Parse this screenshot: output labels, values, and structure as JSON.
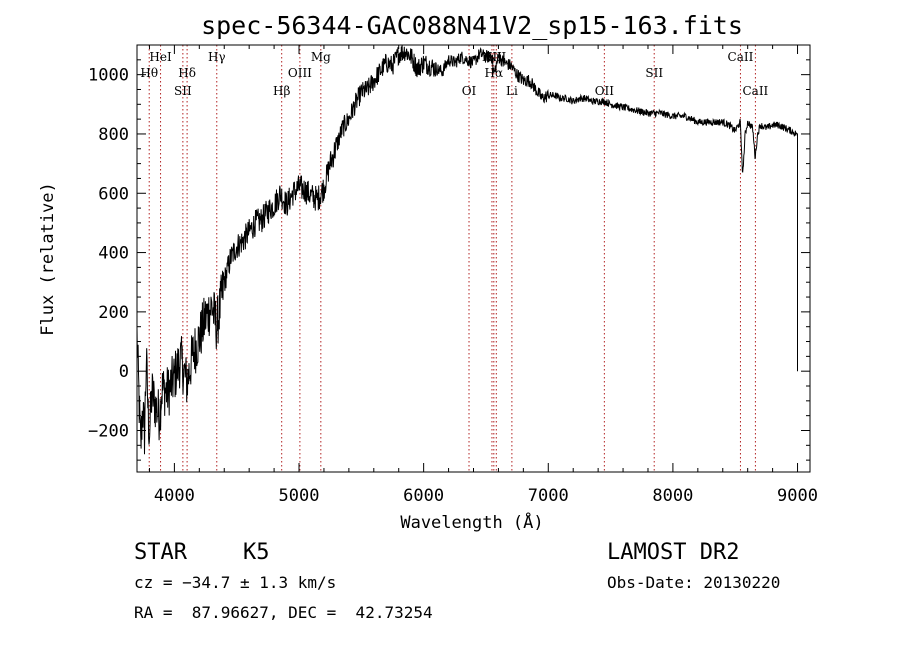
{
  "chart_data": {
    "type": "line",
    "title": "spec-56344-GAC088N41V2_sp15-163.fits",
    "xlabel": "Wavelength (Å)",
    "ylabel": "Flux (relative)",
    "xlim": [
      3700,
      9100
    ],
    "ylim": [
      -340,
      1100
    ],
    "xticks": [
      "4000",
      "5000",
      "6000",
      "7000",
      "8000",
      "9000"
    ],
    "yticks": [
      "−200",
      "0",
      "200",
      "400",
      "600",
      "800",
      "1000"
    ],
    "grid": false,
    "series": [
      {
        "x": [
          3700,
          3715,
          3730,
          3745,
          3760,
          3775,
          3790,
          3800,
          3820,
          3850,
          3880,
          3900,
          3950,
          4000,
          4050,
          4100,
          4150,
          4200,
          4250,
          4300,
          4340,
          4400,
          4450,
          4500,
          4550,
          4600,
          4650,
          4700,
          4750,
          4800,
          4850,
          4900,
          4950,
          5000,
          5050,
          5100,
          5150,
          5200,
          5250,
          5300,
          5350,
          5400,
          5450,
          5500,
          5550,
          5600,
          5650,
          5700,
          5750,
          5800,
          5850,
          5900,
          5950,
          6000,
          6050,
          6100,
          6150,
          6200,
          6250,
          6300,
          6350,
          6400,
          6450,
          6500,
          6550,
          6563,
          6600,
          6650,
          6700,
          6750,
          6800,
          6850,
          6900,
          6950,
          7000,
          7050,
          7100,
          7150,
          7200,
          7250,
          7300,
          7350,
          7400,
          7450,
          7500,
          7600,
          7700,
          7800,
          7900,
          8000,
          8100,
          8200,
          8300,
          8400,
          8450,
          8500,
          8540,
          8560,
          8580,
          8600,
          8640,
          8660,
          8680,
          8700,
          8750,
          8800,
          8850,
          8900,
          8950,
          8990,
          9000
        ],
        "y": [
          120,
          -80,
          -260,
          -120,
          -210,
          40,
          -150,
          -210,
          -70,
          -120,
          -150,
          -60,
          -70,
          -20,
          40,
          -40,
          60,
          110,
          180,
          220,
          150,
          300,
          380,
          420,
          440,
          470,
          500,
          510,
          540,
          560,
          600,
          560,
          600,
          620,
          610,
          590,
          580,
          620,
          700,
          760,
          820,
          850,
          900,
          940,
          950,
          980,
          1010,
          1040,
          1030,
          1070,
          1080,
          1060,
          1020,
          1040,
          1030,
          1020,
          1010,
          1050,
          1040,
          1060,
          1050,
          1040,
          1070,
          1060,
          1060,
          1000,
          1060,
          1040,
          1030,
          1000,
          980,
          980,
          950,
          920,
          930,
          930,
          920,
          920,
          910,
          920,
          920,
          910,
          910,
          910,
          900,
          890,
          880,
          870,
          870,
          860,
          860,
          840,
          840,
          840,
          830,
          810,
          840,
          660,
          800,
          840,
          820,
          720,
          800,
          830,
          820,
          830,
          830,
          820,
          810,
          800,
          0
        ]
      }
    ],
    "spectral_lines": [
      {
        "label": "Hθ",
        "x": 3798,
        "row": 2
      },
      {
        "label": "HeI",
        "x": 3889,
        "row": 1
      },
      {
        "label": "SII",
        "x": 4068,
        "row": 3
      },
      {
        "label": "Hδ",
        "x": 4102,
        "row": 2
      },
      {
        "label": "Hγ",
        "x": 4340,
        "row": 1
      },
      {
        "label": "Hβ",
        "x": 4861,
        "row": 3
      },
      {
        "label": "OIII",
        "x": 5007,
        "row": 2
      },
      {
        "label": "Mg",
        "x": 5175,
        "row": 1
      },
      {
        "label": "OI",
        "x": 6364,
        "row": 3
      },
      {
        "label": "NII",
        "x": 6548,
        "row": 1
      },
      {
        "label": "Hα",
        "x": 6563,
        "row": 2
      },
      {
        "label": "NII",
        "x": 6583,
        "row": 1
      },
      {
        "label": "Li",
        "x": 6708,
        "row": 3
      },
      {
        "label": "OII",
        "x": 7450,
        "row": 3
      },
      {
        "label": "SII",
        "x": 7850,
        "row": 2
      },
      {
        "label": "CaII",
        "x": 8542,
        "row": 1
      },
      {
        "label": "CaII",
        "x": 8662,
        "row": 3
      }
    ]
  },
  "info": {
    "class": "STAR",
    "subclass": "K5",
    "survey": "LAMOST DR2",
    "cz": "cz = −34.7 ± 1.3 km/s",
    "obs_date": "Obs-Date: 20130220",
    "radec": "RA =  87.96627, DEC =  42.73254"
  }
}
